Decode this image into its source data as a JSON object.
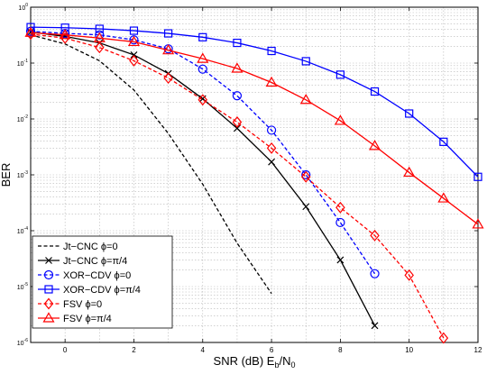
{
  "chart_data": {
    "type": "line",
    "xlabel": "SNR (dB) E",
    "xlabel_sub1": "b",
    "xlabel_mid": "/N",
    "xlabel_sub2": "0",
    "ylabel": "BER",
    "xlim": [
      -1,
      12
    ],
    "ylim": [
      1e-06,
      1
    ],
    "yscale": "log",
    "grid": true,
    "legend_position": "bottom-left",
    "xticks": [
      0,
      2,
      4,
      6,
      8,
      10,
      12
    ],
    "yticks": [
      {
        "value": 1,
        "exp": "0"
      },
      {
        "value": 0.1,
        "exp": "-1"
      },
      {
        "value": 0.01,
        "exp": "-2"
      },
      {
        "value": 0.001,
        "exp": "-3"
      },
      {
        "value": 0.0001,
        "exp": "-4"
      },
      {
        "value": 1e-05,
        "exp": "-5"
      },
      {
        "value": 1e-06,
        "exp": "-6"
      }
    ],
    "series": [
      {
        "name": "Jt−CNC ϕ=0",
        "color": "#000000",
        "dash": "dashed",
        "marker": "none",
        "points": [
          [
            -1,
            0.32
          ],
          [
            0,
            0.22
          ],
          [
            1,
            0.11
          ],
          [
            2,
            0.033
          ],
          [
            3,
            0.0055
          ],
          [
            4,
            0.00068
          ],
          [
            5,
            6e-05
          ],
          [
            6,
            7.5e-06
          ]
        ]
      },
      {
        "name": "Jt−CNC ϕ=π/4",
        "color": "#000000",
        "dash": "solid",
        "marker": "x",
        "points": [
          [
            -1,
            0.36
          ],
          [
            0,
            0.3
          ],
          [
            1,
            0.23
          ],
          [
            2,
            0.14
          ],
          [
            3,
            0.065
          ],
          [
            4,
            0.023
          ],
          [
            5,
            0.0068
          ],
          [
            6,
            0.0017
          ],
          [
            7,
            0.00027
          ],
          [
            8,
            3e-05
          ],
          [
            9,
            2e-06
          ]
        ]
      },
      {
        "name": "XOR−CDV ϕ=0",
        "color": "#0000ff",
        "dash": "dashed",
        "marker": "circle",
        "points": [
          [
            -1,
            0.37
          ],
          [
            0,
            0.34
          ],
          [
            1,
            0.32
          ],
          [
            2,
            0.26
          ],
          [
            3,
            0.18
          ],
          [
            4,
            0.078
          ],
          [
            5,
            0.026
          ],
          [
            6,
            0.0063
          ],
          [
            7,
            0.001
          ],
          [
            8,
            0.00014
          ],
          [
            9,
            1.7e-05
          ]
        ]
      },
      {
        "name": "XOR−CDV ϕ=π/4",
        "color": "#0000ff",
        "dash": "solid",
        "marker": "square",
        "points": [
          [
            -1,
            0.44
          ],
          [
            0,
            0.43
          ],
          [
            1,
            0.41
          ],
          [
            2,
            0.38
          ],
          [
            3,
            0.34
          ],
          [
            4,
            0.29
          ],
          [
            5,
            0.23
          ],
          [
            6,
            0.165
          ],
          [
            7,
            0.108
          ],
          [
            8,
            0.062
          ],
          [
            9,
            0.031
          ],
          [
            10,
            0.0125
          ],
          [
            11,
            0.0039
          ],
          [
            12,
            0.00092
          ]
        ]
      },
      {
        "name": "FSV ϕ=0",
        "color": "#ff0000",
        "dash": "dashed",
        "marker": "diamond",
        "points": [
          [
            -1,
            0.33
          ],
          [
            0,
            0.28
          ],
          [
            1,
            0.19
          ],
          [
            2,
            0.11
          ],
          [
            3,
            0.054
          ],
          [
            4,
            0.022
          ],
          [
            5,
            0.0088
          ],
          [
            6,
            0.003
          ],
          [
            7,
            0.00092
          ],
          [
            8,
            0.00026
          ],
          [
            9,
            8.2e-05
          ],
          [
            10,
            1.6e-05
          ],
          [
            11,
            1.2e-06
          ]
        ]
      },
      {
        "name": "FSV ϕ=π/4",
        "color": "#ff0000",
        "dash": "solid",
        "marker": "triangle",
        "points": [
          [
            -1,
            0.35
          ],
          [
            0,
            0.32
          ],
          [
            1,
            0.28
          ],
          [
            2,
            0.24
          ],
          [
            3,
            0.17
          ],
          [
            4,
            0.12
          ],
          [
            5,
            0.08
          ],
          [
            6,
            0.045
          ],
          [
            7,
            0.022
          ],
          [
            8,
            0.0093
          ],
          [
            9,
            0.0033
          ],
          [
            10,
            0.0011
          ],
          [
            11,
            0.00038
          ],
          [
            12,
            0.00013
          ]
        ]
      }
    ]
  }
}
